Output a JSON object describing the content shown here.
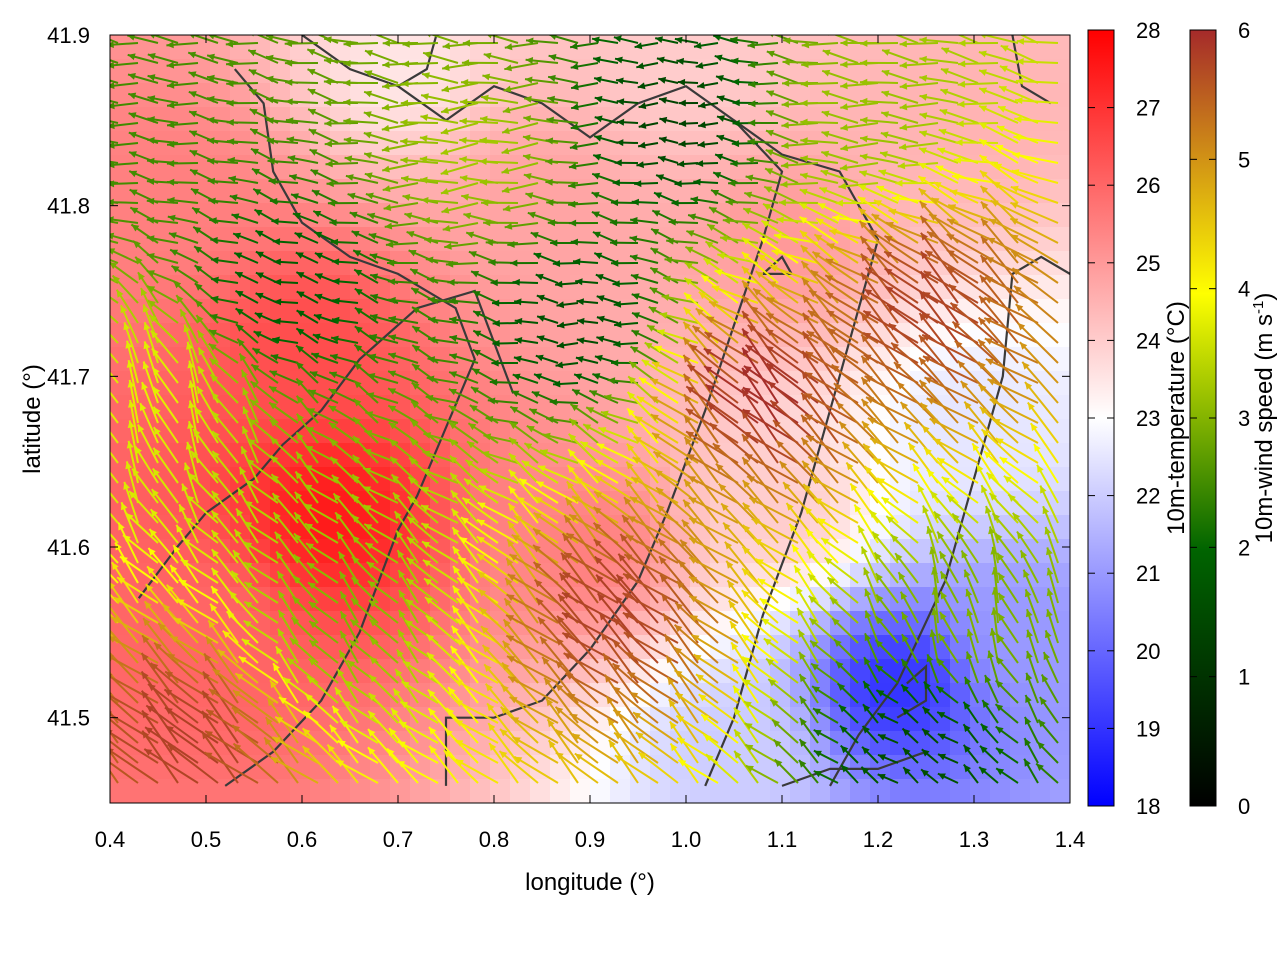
{
  "chart_data": {
    "type": "heatmap",
    "subtype": "temperature field with wind vectors and terrain contours",
    "xlabel": "longitude (°)",
    "ylabel": "latitude (°)",
    "xlim": [
      0.4,
      1.4
    ],
    "ylim": [
      41.45,
      41.9
    ],
    "x_ticks": [
      "0.4",
      "0.5",
      "0.6",
      "0.7",
      "0.8",
      "0.9",
      "1.0",
      "1.1",
      "1.2",
      "1.3",
      "1.4"
    ],
    "y_ticks": [
      "41.5",
      "41.6",
      "41.7",
      "41.8",
      "41.9"
    ],
    "colorbars": [
      {
        "id": "temperature",
        "label": "10m-temperature (°C)",
        "range": [
          18,
          28
        ],
        "ticks": [
          "18",
          "19",
          "20",
          "21",
          "22",
          "23",
          "24",
          "25",
          "26",
          "27",
          "28"
        ],
        "colors": [
          "#0000ff",
          "#ffffff",
          "#ff0000"
        ]
      },
      {
        "id": "windspeed",
        "label_main": "10m-wind speed (m s",
        "label_sup": "-1",
        "label_end": ")",
        "range": [
          0,
          6
        ],
        "ticks": [
          "0",
          "1",
          "2",
          "3",
          "4",
          "5",
          "6"
        ],
        "colors": [
          "#000000",
          "#006400",
          "#ffff00",
          "#a52a2a"
        ]
      }
    ],
    "temperature_regions": [
      {
        "x": 0.63,
        "y": 41.62,
        "value": 27.5
      },
      {
        "x": 0.6,
        "y": 41.72,
        "value": 26.5
      },
      {
        "x": 0.5,
        "y": 41.55,
        "value": 26.0
      },
      {
        "x": 0.45,
        "y": 41.8,
        "value": 25.5
      },
      {
        "x": 0.85,
        "y": 41.8,
        "value": 24.8
      },
      {
        "x": 0.9,
        "y": 41.6,
        "value": 25.5
      },
      {
        "x": 1.1,
        "y": 41.78,
        "value": 25.0
      },
      {
        "x": 1.3,
        "y": 41.85,
        "value": 24.5
      },
      {
        "x": 1.0,
        "y": 41.88,
        "value": 24.0
      },
      {
        "x": 0.7,
        "y": 41.88,
        "value": 23.5
      },
      {
        "x": 1.22,
        "y": 41.52,
        "value": 19.0
      },
      {
        "x": 1.35,
        "y": 41.55,
        "value": 21.0
      },
      {
        "x": 1.3,
        "y": 41.67,
        "value": 22.5
      },
      {
        "x": 1.1,
        "y": 41.62,
        "value": 24.0
      },
      {
        "x": 1.05,
        "y": 41.48,
        "value": 22.0
      }
    ],
    "wind_regimes": [
      {
        "x": 0.6,
        "y": 41.75,
        "u": -1.6,
        "v": 0.5,
        "speed": 1.8
      },
      {
        "x": 0.45,
        "y": 41.84,
        "u": -2.4,
        "v": 0.3,
        "speed": 2.5
      },
      {
        "x": 0.8,
        "y": 41.83,
        "u": -2.6,
        "v": -0.1,
        "speed": 3.3
      },
      {
        "x": 0.9,
        "y": 41.73,
        "u": -1.4,
        "v": 0.1,
        "speed": 1.5
      },
      {
        "x": 1.0,
        "y": 41.85,
        "u": -1.2,
        "v": 0.0,
        "speed": 1.3
      },
      {
        "x": 1.2,
        "y": 41.85,
        "u": -3.0,
        "v": 0.2,
        "speed": 3.2
      },
      {
        "x": 0.45,
        "y": 41.68,
        "u": -1.0,
        "v": 2.5,
        "speed": 3.8
      },
      {
        "x": 0.65,
        "y": 41.55,
        "u": -1.2,
        "v": 1.3,
        "speed": 3.0
      },
      {
        "x": 0.5,
        "y": 41.48,
        "u": -2.5,
        "v": 2.2,
        "speed": 5.8
      },
      {
        "x": 0.95,
        "y": 41.55,
        "u": -2.6,
        "v": 2.4,
        "speed": 5.8
      },
      {
        "x": 1.1,
        "y": 41.68,
        "u": -2.8,
        "v": 2.6,
        "speed": 6.0
      },
      {
        "x": 1.27,
        "y": 41.73,
        "u": -2.6,
        "v": 2.2,
        "speed": 5.8
      },
      {
        "x": 1.3,
        "y": 41.55,
        "u": -0.4,
        "v": 1.3,
        "speed": 3.0
      },
      {
        "x": 1.25,
        "y": 41.48,
        "u": -0.7,
        "v": 0.5,
        "speed": 1.5
      }
    ],
    "contours": [
      [
        [
          0.43,
          41.57
        ],
        [
          0.47,
          41.6
        ],
        [
          0.5,
          41.62
        ],
        [
          0.55,
          41.64
        ],
        [
          0.58,
          41.66
        ],
        [
          0.62,
          41.68
        ],
        [
          0.66,
          41.71
        ],
        [
          0.72,
          41.74
        ],
        [
          0.78,
          41.75
        ],
        [
          0.8,
          41.72
        ],
        [
          0.82,
          41.69
        ]
      ],
      [
        [
          0.52,
          41.46
        ],
        [
          0.57,
          41.48
        ],
        [
          0.62,
          41.51
        ],
        [
          0.66,
          41.55
        ],
        [
          0.68,
          41.58
        ],
        [
          0.7,
          41.61
        ],
        [
          0.72,
          41.63
        ],
        [
          0.75,
          41.67
        ],
        [
          0.78,
          41.71
        ],
        [
          0.76,
          41.74
        ],
        [
          0.7,
          41.76
        ],
        [
          0.65,
          41.77
        ],
        [
          0.6,
          41.79
        ],
        [
          0.57,
          41.82
        ],
        [
          0.56,
          41.86
        ],
        [
          0.53,
          41.88
        ]
      ],
      [
        [
          0.75,
          41.46
        ],
        [
          0.75,
          41.5
        ],
        [
          0.8,
          41.5
        ],
        [
          0.85,
          41.51
        ],
        [
          0.9,
          41.54
        ],
        [
          0.95,
          41.58
        ],
        [
          0.98,
          41.62
        ],
        [
          1.02,
          41.68
        ],
        [
          1.05,
          41.73
        ],
        [
          1.08,
          41.78
        ],
        [
          1.1,
          41.82
        ],
        [
          1.05,
          41.85
        ],
        [
          1.0,
          41.87
        ],
        [
          0.95,
          41.86
        ],
        [
          0.9,
          41.84
        ],
        [
          0.85,
          41.86
        ],
        [
          0.8,
          41.87
        ],
        [
          0.75,
          41.85
        ],
        [
          0.7,
          41.87
        ]
      ],
      [
        [
          1.02,
          41.46
        ],
        [
          1.05,
          41.5
        ],
        [
          1.08,
          41.56
        ],
        [
          1.12,
          41.62
        ],
        [
          1.15,
          41.68
        ],
        [
          1.18,
          41.74
        ],
        [
          1.2,
          41.78
        ],
        [
          1.16,
          41.82
        ],
        [
          1.1,
          41.83
        ],
        [
          1.05,
          41.85
        ]
      ],
      [
        [
          1.15,
          41.46
        ],
        [
          1.18,
          41.49
        ],
        [
          1.22,
          41.52
        ],
        [
          1.27,
          41.58
        ],
        [
          1.3,
          41.64
        ],
        [
          1.33,
          41.7
        ],
        [
          1.34,
          41.76
        ],
        [
          1.37,
          41.77
        ],
        [
          1.4,
          41.76
        ]
      ],
      [
        [
          1.1,
          41.46
        ],
        [
          1.15,
          41.47
        ],
        [
          1.2,
          41.47
        ],
        [
          1.25,
          41.48
        ]
      ],
      [
        [
          1.22,
          41.5
        ],
        [
          1.25,
          41.51
        ],
        [
          1.25,
          41.53
        ],
        [
          1.23,
          41.52
        ]
      ],
      [
        [
          1.34,
          41.9
        ],
        [
          1.35,
          41.87
        ],
        [
          1.38,
          41.86
        ]
      ],
      [
        [
          0.6,
          41.9
        ],
        [
          0.65,
          41.88
        ],
        [
          0.7,
          41.87
        ],
        [
          0.73,
          41.88
        ],
        [
          0.74,
          41.9
        ]
      ],
      [
        [
          1.08,
          41.76
        ],
        [
          1.11,
          41.76
        ],
        [
          1.1,
          41.77
        ],
        [
          1.08,
          41.76
        ]
      ]
    ]
  }
}
